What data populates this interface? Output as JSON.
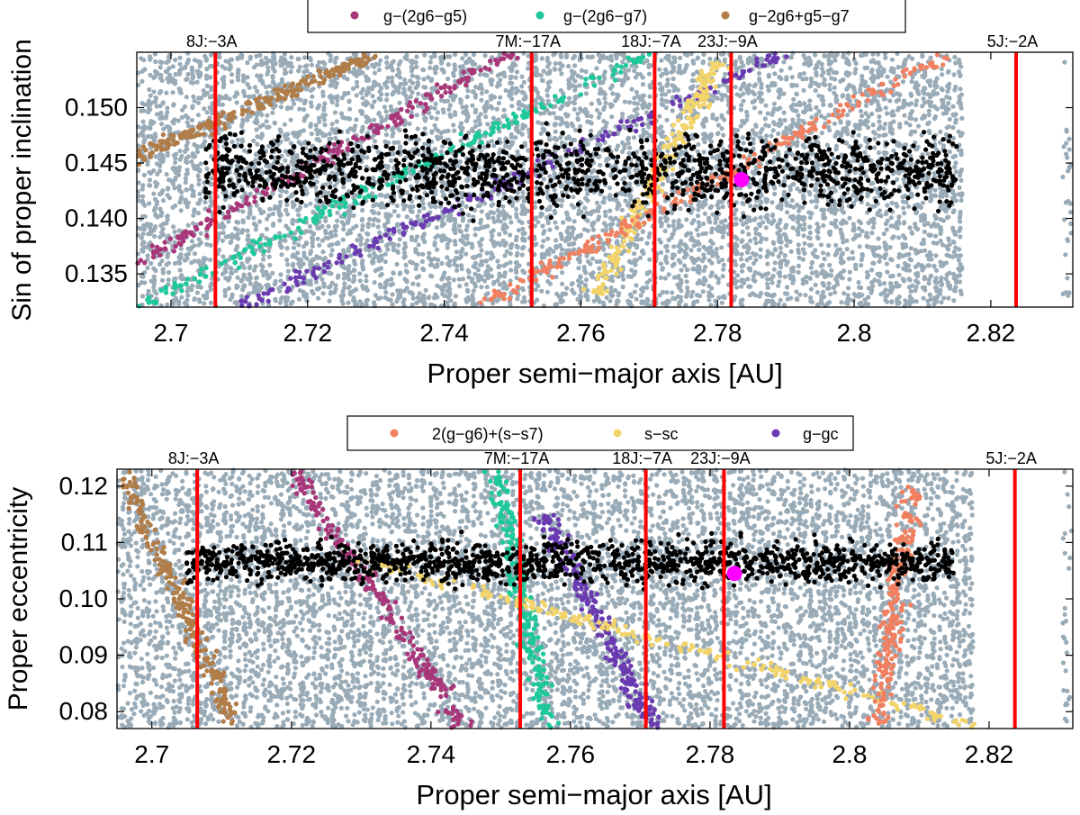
{
  "chart_data": [
    {
      "type": "scatter",
      "title": "",
      "xlabel": "Proper semi−major axis [AU]",
      "ylabel": "Sin of proper inclination",
      "xlim": [
        2.695,
        2.832
      ],
      "ylim": [
        0.132,
        0.155
      ],
      "xticks": [
        2.7,
        2.72,
        2.74,
        2.76,
        2.78,
        2.8,
        2.82
      ],
      "xtick_labels": [
        "2.7",
        "2.72",
        "2.74",
        "2.76",
        "2.78",
        "2.8",
        "2.82"
      ],
      "yticks": [
        0.135,
        0.14,
        0.145,
        0.15
      ],
      "ytick_labels": [
        "0.135",
        "0.140",
        "0.145",
        "0.150"
      ],
      "legend_position": "top-center",
      "legend": [
        {
          "label": "g−(2g6−g5)",
          "color": "#a8377a"
        },
        {
          "label": "g−(2g6−g7)",
          "color": "#1ec89a"
        },
        {
          "label": "g−2g6+g5−g7",
          "color": "#b07c48"
        }
      ],
      "resonances": [
        {
          "label": "8J:−3A",
          "a": 2.7065
        },
        {
          "label": "7M:−17A",
          "a": 2.7528
        },
        {
          "label": "18J:−7A",
          "a": 2.7708
        },
        {
          "label": "23J:−9A",
          "a": 2.782
        },
        {
          "label": "5J:−2A",
          "a": 2.8237
        }
      ],
      "family_center": {
        "a": 2.7835,
        "value": 0.1435,
        "color": "#ff00ff"
      },
      "series": [
        {
          "name": "background",
          "color": "#9aabb8",
          "a_range": [
            2.695,
            2.816
          ],
          "value_range": [
            0.132,
            0.155
          ]
        },
        {
          "name": "family members",
          "color": "#000000",
          "a_range": [
            2.705,
            2.815
          ],
          "value_center": 0.1443,
          "value_spread": 0.0035
        },
        {
          "name": "g−(2g6−g5)",
          "color": "#a8377a",
          "points": [
            [
              2.695,
              0.136
            ],
            [
              2.75,
              0.155
            ]
          ]
        },
        {
          "name": "g−(2g6−g7)",
          "color": "#1ec89a",
          "points": [
            [
              2.695,
              0.132
            ],
            [
              2.77,
              0.155
            ]
          ]
        },
        {
          "name": "g−2g6+g5−g7",
          "color": "#b07c48",
          "points": [
            [
              2.695,
              0.1455
            ],
            [
              2.73,
              0.155
            ]
          ]
        },
        {
          "name": "g−gc",
          "color": "#6a3ab0",
          "points": [
            [
              2.71,
              0.132
            ],
            [
              2.79,
              0.155
            ]
          ]
        },
        {
          "name": "s−sc",
          "color": "#f2d46a",
          "points": [
            [
              2.762,
              0.133
            ],
            [
              2.78,
              0.154
            ]
          ]
        },
        {
          "name": "2(g−g6)+(s−s7)",
          "color": "#f08060",
          "points": [
            [
              2.745,
              0.132
            ],
            [
              2.814,
              0.155
            ]
          ]
        }
      ]
    },
    {
      "type": "scatter",
      "title": "",
      "xlabel": "Proper semi−major axis [AU]",
      "ylabel": "Proper eccentricity",
      "xlim": [
        2.695,
        2.832
      ],
      "ylim": [
        0.077,
        0.123
      ],
      "xticks": [
        2.7,
        2.72,
        2.74,
        2.76,
        2.78,
        2.8,
        2.82
      ],
      "xtick_labels": [
        "2.7",
        "2.72",
        "2.74",
        "2.76",
        "2.78",
        "2.8",
        "2.82"
      ],
      "yticks": [
        0.08,
        0.09,
        0.1,
        0.11,
        0.12
      ],
      "ytick_labels": [
        "0.08",
        "0.09",
        "0.10",
        "0.11",
        "0.12"
      ],
      "legend_position": "top-center",
      "legend": [
        {
          "label": "2(g−g6)+(s−s7)",
          "color": "#f08060"
        },
        {
          "label": "s−sc",
          "color": "#f2d46a"
        },
        {
          "label": "g−gc",
          "color": "#6a3ab0"
        }
      ],
      "resonances": [
        {
          "label": "8J:−3A",
          "a": 2.7065
        },
        {
          "label": "7M:−17A",
          "a": 2.7528
        },
        {
          "label": "18J:−7A",
          "a": 2.7708
        },
        {
          "label": "23J:−9A",
          "a": 2.782
        },
        {
          "label": "5J:−2A",
          "a": 2.8237
        }
      ],
      "family_center": {
        "a": 2.7835,
        "value": 0.1045,
        "color": "#ff00ff"
      },
      "series": [
        {
          "name": "background",
          "color": "#9aabb8",
          "a_range": [
            2.695,
            2.818
          ],
          "value_range": [
            0.077,
            0.123
          ]
        },
        {
          "name": "family members",
          "color": "#000000",
          "a_range": [
            2.705,
            2.815
          ],
          "value_center": 0.1065,
          "value_spread": 0.004
        },
        {
          "name": "g−(2g6−g5)",
          "color": "#a8377a",
          "points": [
            [
              2.72,
              0.123
            ],
            [
              2.745,
              0.077
            ]
          ]
        },
        {
          "name": "g−(2g6−g7)",
          "color": "#1ec89a",
          "points": [
            [
              2.749,
              0.123
            ],
            [
              2.757,
              0.077
            ]
          ]
        },
        {
          "name": "g−2g6+g5−g7",
          "color": "#b07c48",
          "points": [
            [
              2.696,
              0.122
            ],
            [
              2.712,
              0.078
            ]
          ]
        },
        {
          "name": "g−gc",
          "color": "#6a3ab0",
          "points": [
            [
              2.756,
              0.115
            ],
            [
              2.772,
              0.077
            ]
          ]
        },
        {
          "name": "s−sc",
          "color": "#f2d46a",
          "points": [
            [
              2.73,
              0.107
            ],
            [
              2.817,
              0.078
            ]
          ]
        },
        {
          "name": "2(g−g6)+(s−s7)",
          "color": "#f08060",
          "points": [
            [
              2.809,
              0.12
            ],
            [
              2.804,
              0.078
            ]
          ]
        }
      ]
    }
  ]
}
